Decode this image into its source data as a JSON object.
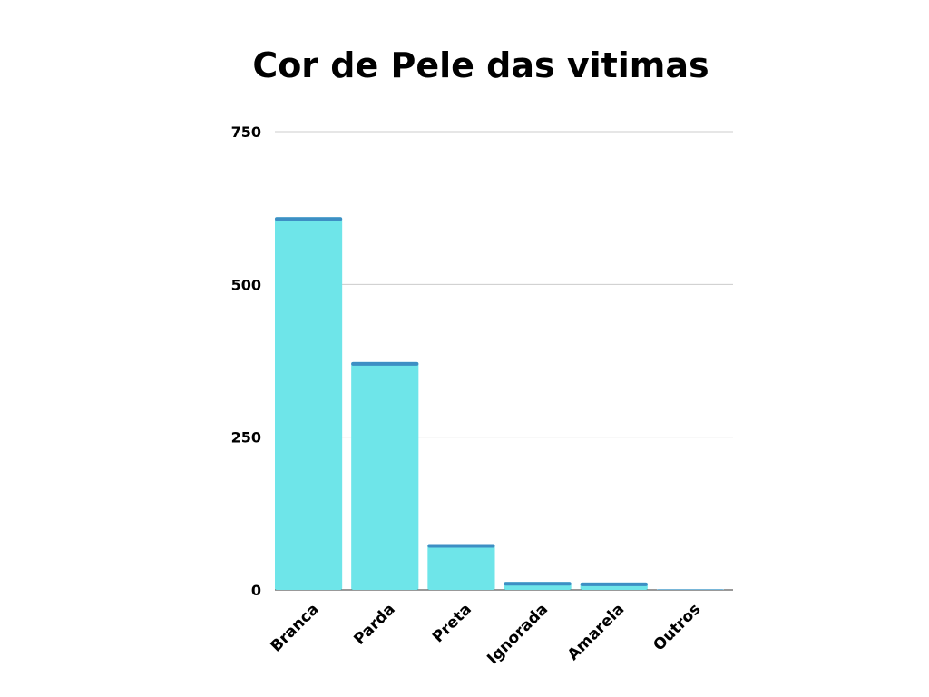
{
  "chart_data": {
    "type": "bar",
    "title": "Cor de Pele das vitimas",
    "xlabel": "",
    "ylabel": "",
    "categories": [
      "Branca",
      "Parda",
      "Preta",
      "Ignorada",
      "Amarela",
      "Outros"
    ],
    "values": [
      610,
      373,
      75,
      13,
      12,
      1
    ],
    "ylim": [
      0,
      750
    ],
    "yticks": [
      0,
      250,
      500,
      750
    ],
    "grid": true,
    "legend": "none",
    "colors": {
      "bar_fill": "#6ee5e9",
      "bar_cap": "#3d8fc4",
      "grid": "#cccccc",
      "axis": "#333333"
    }
  }
}
